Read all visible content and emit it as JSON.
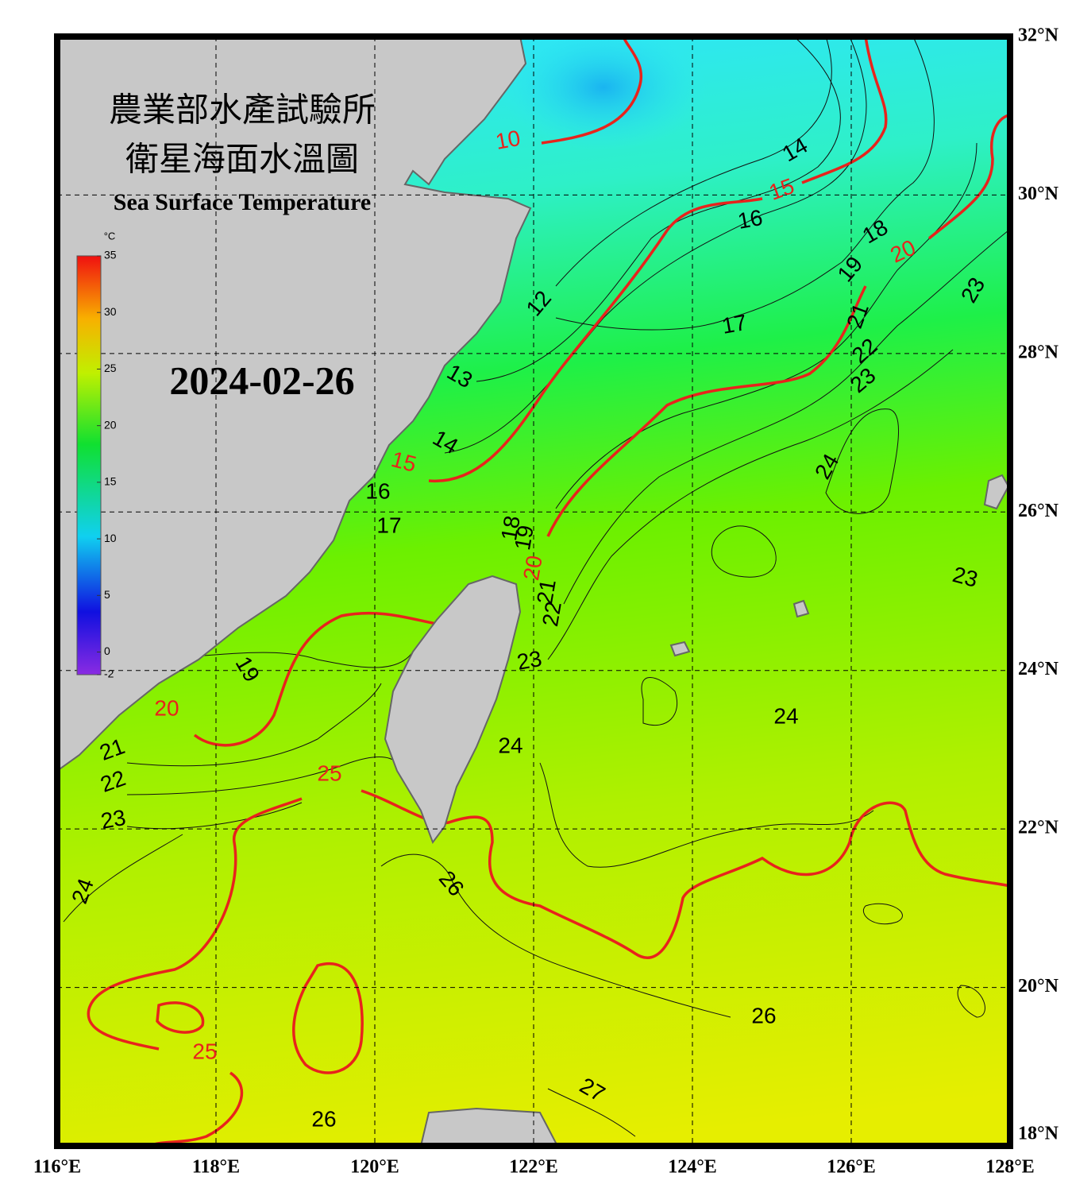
{
  "header": {
    "title_zh": "農業部水產試驗所",
    "subtitle_zh": "衛星海面水溫圖",
    "title_en": "Sea Surface Temperature",
    "date": "2024-02-26"
  },
  "map": {
    "xlim": [
      116,
      128
    ],
    "ylim": [
      18,
      32
    ],
    "grid": true,
    "xticks": [
      {
        "value": 116,
        "label": "116°E"
      },
      {
        "value": 118,
        "label": "118°E"
      },
      {
        "value": 120,
        "label": "120°E"
      },
      {
        "value": 122,
        "label": "122°E"
      },
      {
        "value": 124,
        "label": "124°E"
      },
      {
        "value": 126,
        "label": "126°E"
      },
      {
        "value": 128,
        "label": "128°E"
      }
    ],
    "yticks": [
      {
        "value": 18,
        "label": "18°N"
      },
      {
        "value": 20,
        "label": "20°N"
      },
      {
        "value": 22,
        "label": "22°N"
      },
      {
        "value": 24,
        "label": "24°N"
      },
      {
        "value": 26,
        "label": "26°N"
      },
      {
        "value": 28,
        "label": "28°N"
      },
      {
        "value": 30,
        "label": "30°N"
      },
      {
        "value": 32,
        "label": "32°N"
      }
    ]
  },
  "colorbar": {
    "unit": "°C",
    "range": [
      -2,
      35
    ],
    "ticks": [
      35,
      30,
      25,
      20,
      15,
      10,
      5,
      0,
      -2
    ]
  },
  "contour_labels": {
    "major": [
      10,
      15,
      15,
      20,
      20,
      20,
      25,
      25
    ],
    "minor": [
      14,
      16,
      18,
      19,
      23,
      17,
      21,
      22,
      23,
      12,
      13,
      24,
      14,
      16,
      17,
      18,
      19,
      21,
      22,
      23,
      23,
      19,
      24,
      24,
      21,
      22,
      23,
      24,
      26,
      26,
      27,
      26
    ]
  }
}
